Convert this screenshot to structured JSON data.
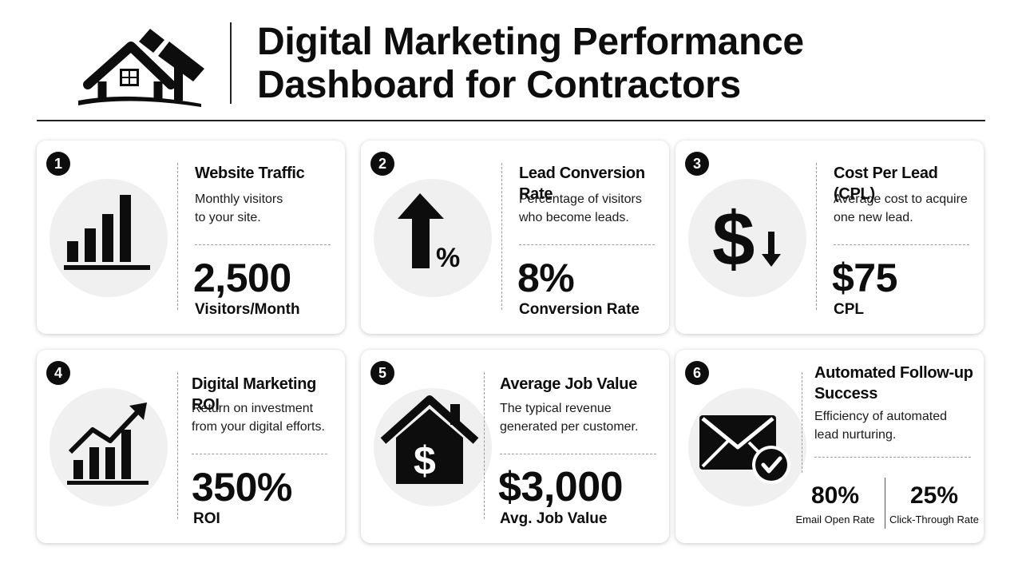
{
  "header": {
    "title_line1": "Digital Marketing Performance",
    "title_line2": "Dashboard for Contractors",
    "logo_icon": "house-hammer-icon"
  },
  "cards": [
    {
      "number": "1",
      "title": "Website Traffic",
      "desc_line1": "Monthly visitors",
      "desc_line2": "to your site.",
      "value": "2,500",
      "unit": "Visitors/Month",
      "icon": "bar-chart-icon"
    },
    {
      "number": "2",
      "title": "Lead Conversion Rate",
      "desc_line1": "Percentage of visitors",
      "desc_line2": "who become leads.",
      "value": "8%",
      "unit": "Conversion Rate",
      "icon": "arrow-up-percent-icon"
    },
    {
      "number": "3",
      "title": "Cost Per Lead (CPL)",
      "desc_line1": "Average cost to acquire",
      "desc_line2": "one new lead.",
      "value": "$75",
      "unit": "CPL",
      "icon": "dollar-down-icon"
    },
    {
      "number": "4",
      "title": "Digital Marketing ROI",
      "desc_line1": "Return on investment",
      "desc_line2": "from your digital efforts.",
      "value": "350%",
      "unit": "ROI",
      "icon": "growth-chart-icon"
    },
    {
      "number": "5",
      "title": "Average Job Value",
      "desc_line1": "The typical revenue",
      "desc_line2": "generated per customer.",
      "value": "$3,000",
      "unit": "Avg. Job Value",
      "icon": "house-dollar-icon"
    },
    {
      "number": "6",
      "title_line1": "Automated Follow-up",
      "title_line2": "Success",
      "desc_line1": "Efficiency of automated",
      "desc_line2": "lead nurturing.",
      "metrics": [
        {
          "value": "80%",
          "label": "Email Open Rate"
        },
        {
          "value": "25%",
          "label": "Click-Through Rate"
        }
      ],
      "icon": "envelope-check-icon"
    }
  ]
}
